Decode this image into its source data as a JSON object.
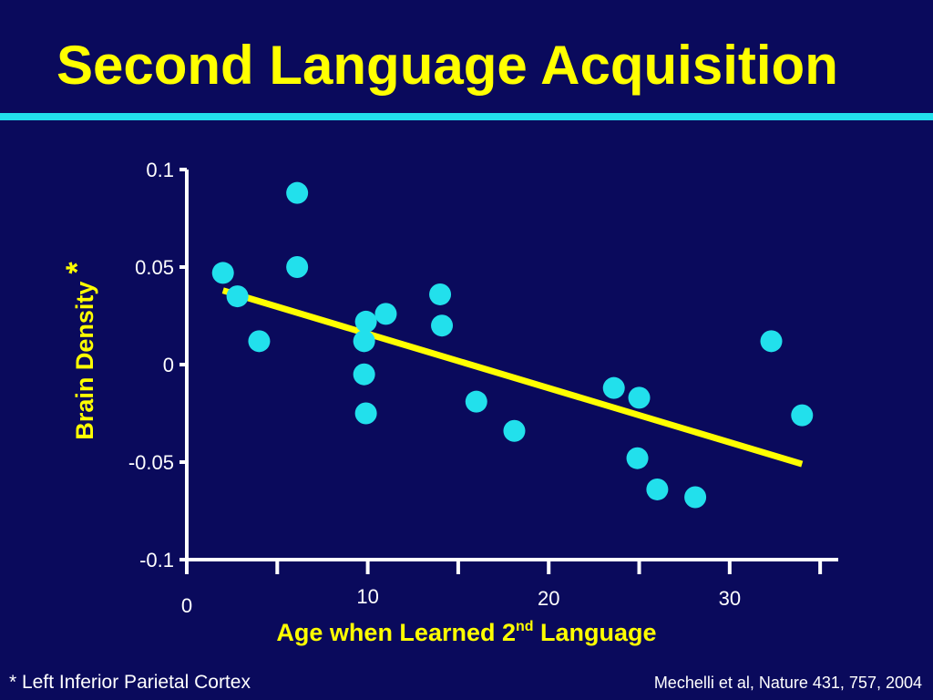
{
  "slide": {
    "title": "Second Language Acquisition",
    "footnote": "* Left Inferior Parietal Cortex",
    "citation": "Mechelli et al, Nature 431, 757, 2004"
  },
  "colors": {
    "background": "#0a0a5c",
    "title": "#ffff00",
    "rule": "#22e0ec",
    "points": "#22e0ec",
    "trendline": "#ffff00",
    "axis": "#ffffff",
    "axis_title": "#ffff00"
  },
  "chart_data": {
    "type": "scatter",
    "xlabel_parts": [
      "Age when Learned 2",
      "nd",
      " Language"
    ],
    "ylabel": "Brain Density",
    "ylabel_marker": "*",
    "xlim": [
      0,
      36
    ],
    "ylim": [
      -0.1,
      0.1
    ],
    "x_ticks": [
      0,
      5,
      10,
      15,
      20,
      25,
      30,
      35
    ],
    "x_tick_labels": [
      {
        "value": 0,
        "text": "0"
      },
      {
        "value": 10,
        "text": "10"
      },
      {
        "value": 20,
        "text": "20"
      },
      {
        "value": 30,
        "text": "30"
      }
    ],
    "y_ticks": [
      0.1,
      0.05,
      0,
      -0.05,
      -0.1
    ],
    "y_tick_labels": [
      "0.1",
      "0.05",
      "0",
      "-0.05",
      "-0.1"
    ],
    "grid": false,
    "legend": false,
    "points": [
      {
        "x": 2.0,
        "y": 0.047
      },
      {
        "x": 2.8,
        "y": 0.035
      },
      {
        "x": 4.0,
        "y": 0.012
      },
      {
        "x": 6.1,
        "y": 0.088
      },
      {
        "x": 6.1,
        "y": 0.05
      },
      {
        "x": 9.9,
        "y": 0.022
      },
      {
        "x": 9.8,
        "y": 0.012
      },
      {
        "x": 9.8,
        "y": -0.005
      },
      {
        "x": 9.9,
        "y": -0.025
      },
      {
        "x": 11.0,
        "y": 0.026
      },
      {
        "x": 14.0,
        "y": 0.036
      },
      {
        "x": 14.1,
        "y": 0.02
      },
      {
        "x": 16.0,
        "y": -0.019
      },
      {
        "x": 18.1,
        "y": -0.034
      },
      {
        "x": 23.6,
        "y": -0.012
      },
      {
        "x": 25.0,
        "y": -0.017
      },
      {
        "x": 24.9,
        "y": -0.048
      },
      {
        "x": 26.0,
        "y": -0.064
      },
      {
        "x": 28.1,
        "y": -0.068
      },
      {
        "x": 32.3,
        "y": 0.012
      },
      {
        "x": 34.0,
        "y": -0.026
      }
    ],
    "trendline": {
      "x": [
        2.0,
        34.0
      ],
      "y": [
        0.038,
        -0.051
      ]
    }
  }
}
